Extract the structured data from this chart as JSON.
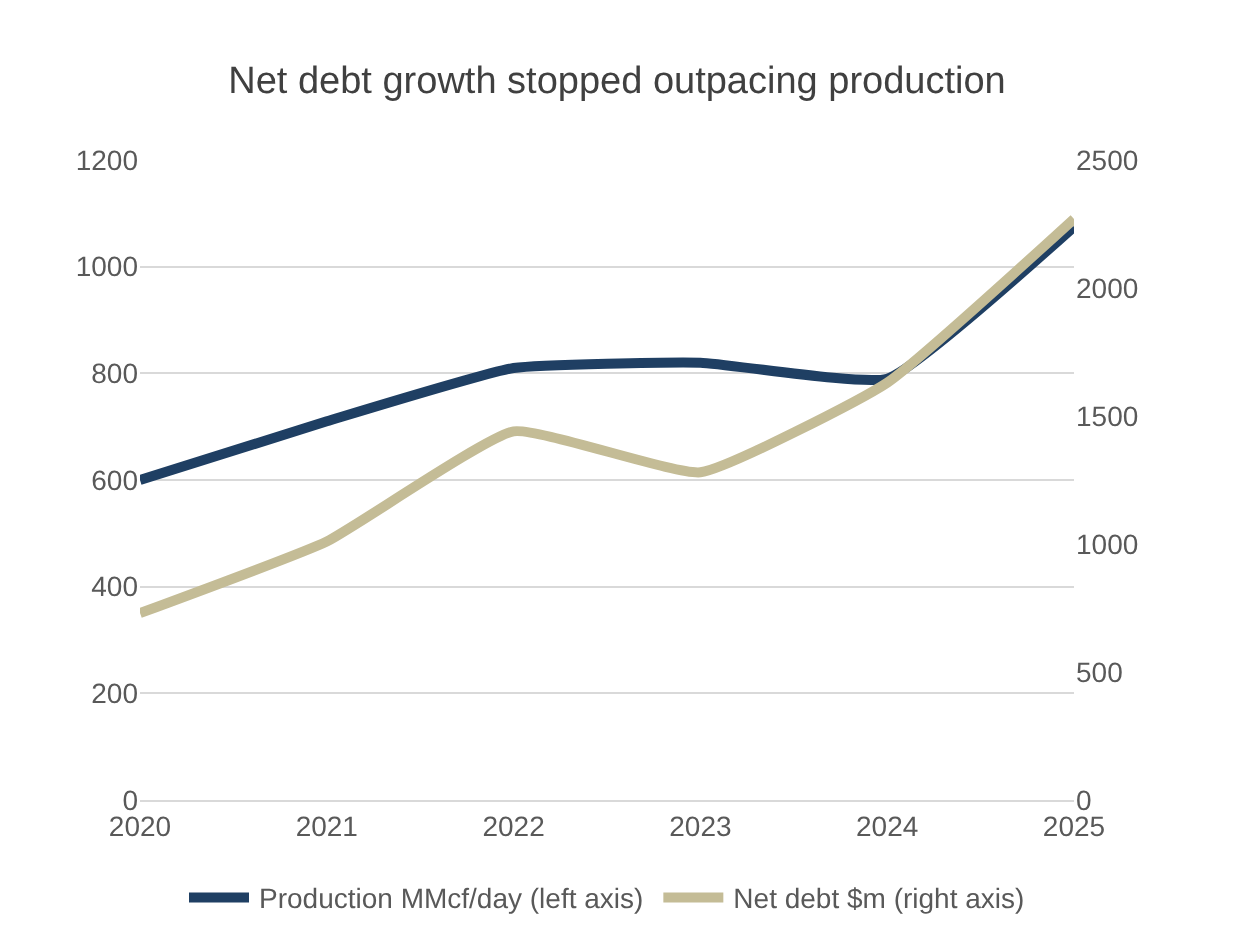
{
  "chart_data": {
    "type": "line",
    "title": "Net debt growth stopped outpacing production",
    "categories": [
      "2020",
      "2021",
      "2022",
      "2023",
      "2024",
      "2025"
    ],
    "series": [
      {
        "name": "Production MMcf/day (left axis)",
        "color": "#1f3f63",
        "values": [
          600,
          710,
          810,
          820,
          790,
          1075
        ]
      },
      {
        "name": "Net debt $m (right axis)",
        "color": "#c4bc96",
        "values": [
          730,
          1010,
          1440,
          1280,
          1630,
          2270
        ],
        "axis": "y2"
      }
    ],
    "ylim": [
      0,
      1200
    ],
    "yticks": [
      0,
      200,
      400,
      600,
      800,
      1000,
      1200
    ],
    "y2lim": [
      0,
      2500
    ],
    "y2ticks": [
      0,
      500,
      1000,
      1500,
      2000,
      2500
    ],
    "grid": "y",
    "legend": "bottom",
    "marker": "none",
    "line_style": "solid"
  }
}
